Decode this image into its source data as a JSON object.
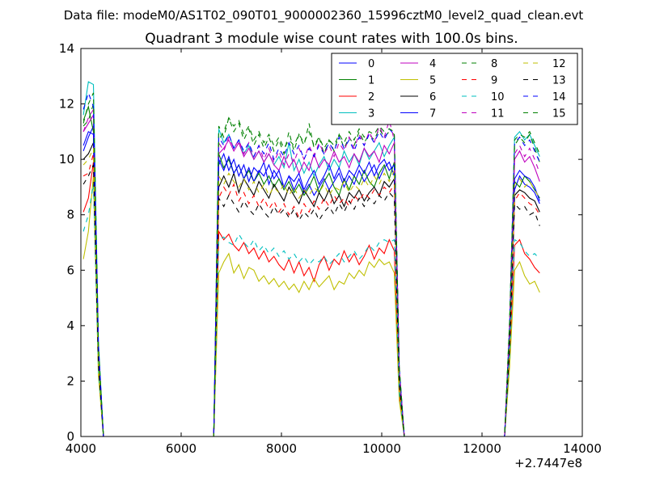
{
  "chart_data": {
    "type": "line",
    "suptitle": "Data file: modeM0/AS1T02_090T01_9000002360_15996cztM0_level2_quad_clean.evt",
    "title": "Quadrant 3 module wise count rates with 100.0s bins.",
    "xlabel": "",
    "ylabel": "",
    "x_offset_label": "+2.7447e8",
    "xlim": [
      4000,
      14000
    ],
    "ylim": [
      0,
      14
    ],
    "xticks": [
      4000,
      6000,
      8000,
      10000,
      12000,
      14000
    ],
    "yticks": [
      0,
      2,
      4,
      6,
      8,
      10,
      12,
      14
    ],
    "grid": false,
    "legend_position": "top-right",
    "legend_columns": 4,
    "x": [
      4050,
      4150,
      4250,
      4350,
      4450,
      4550,
      6650,
      6750,
      6850,
      6950,
      7050,
      7150,
      7250,
      7350,
      7450,
      7550,
      7650,
      7750,
      7850,
      7950,
      8050,
      8150,
      8250,
      8350,
      8450,
      8550,
      8650,
      8750,
      8850,
      8950,
      9050,
      9150,
      9250,
      9350,
      9450,
      9550,
      9650,
      9750,
      9850,
      9950,
      10050,
      10150,
      10250,
      10350,
      10450,
      12450,
      12550,
      12650,
      12750,
      12850,
      12950,
      13050,
      13150
    ],
    "series": [
      {
        "name": "0",
        "color": "#0000ff",
        "dash": "solid",
        "values": [
          10.3,
          10.8,
          11.2,
          3.0,
          0,
          0,
          0,
          9.8,
          10.2,
          9.6,
          10.0,
          9.4,
          9.8,
          9.2,
          9.7,
          9.5,
          9.9,
          9.1,
          9.6,
          9.3,
          9.0,
          9.4,
          8.9,
          9.3,
          8.8,
          9.1,
          8.7,
          9.0,
          9.3,
          8.9,
          9.2,
          9.5,
          9.0,
          9.4,
          9.1,
          9.6,
          9.2,
          9.5,
          9.8,
          9.3,
          9.7,
          9.9,
          9.4,
          2.0,
          0,
          0,
          3.5,
          8.9,
          9.4,
          9.1,
          9.0,
          8.8,
          8.4
        ]
      },
      {
        "name": "1",
        "color": "#008000",
        "dash": "solid",
        "values": [
          11.4,
          11.9,
          11.0,
          3.1,
          0,
          0,
          0,
          10.2,
          9.7,
          10.0,
          9.5,
          9.8,
          9.3,
          9.6,
          9.2,
          9.5,
          9.1,
          9.4,
          9.0,
          9.3,
          8.9,
          9.2,
          8.8,
          9.1,
          8.7,
          9.0,
          9.4,
          8.8,
          9.2,
          9.5,
          9.0,
          8.7,
          9.3,
          8.9,
          9.4,
          9.1,
          9.6,
          9.2,
          9.0,
          9.5,
          9.8,
          9.3,
          9.9,
          2.0,
          0,
          0,
          3.5,
          9.2,
          9.0,
          9.4,
          9.2,
          8.9,
          8.6
        ]
      },
      {
        "name": "2",
        "color": "#ff0000",
        "dash": "solid",
        "values": [
          8.1,
          8.6,
          9.9,
          2.5,
          0,
          0,
          0,
          7.4,
          7.1,
          7.3,
          6.9,
          6.7,
          7.0,
          6.6,
          6.8,
          6.4,
          6.7,
          6.3,
          6.5,
          6.2,
          6.0,
          6.4,
          5.9,
          6.3,
          5.8,
          6.1,
          5.6,
          6.2,
          6.5,
          6.0,
          6.4,
          6.2,
          6.7,
          6.3,
          6.6,
          6.2,
          6.5,
          6.9,
          6.4,
          6.8,
          6.6,
          7.1,
          6.7,
          1.5,
          0,
          0,
          2.8,
          6.9,
          7.1,
          6.6,
          6.4,
          6.1,
          5.9
        ]
      },
      {
        "name": "3",
        "color": "#00bfbf",
        "dash": "solid",
        "values": [
          11.6,
          12.8,
          12.7,
          3.4,
          0,
          0,
          0,
          11.1,
          10.6,
          10.9,
          10.4,
          10.7,
          10.2,
          10.5,
          10.0,
          10.3,
          9.9,
          10.2,
          9.8,
          10.1,
          9.7,
          10.6,
          9.6,
          10.0,
          9.5,
          9.9,
          9.4,
          9.8,
          10.1,
          9.6,
          10.0,
          9.7,
          10.3,
          9.9,
          10.2,
          9.8,
          10.4,
          10.0,
          10.3,
          10.6,
          10.1,
          10.5,
          10.8,
          2.4,
          0,
          0,
          4.0,
          10.8,
          11.0,
          10.7,
          10.9,
          10.5,
          10.1
        ]
      },
      {
        "name": "4",
        "color": "#bf00bf",
        "dash": "solid",
        "values": [
          11.0,
          11.3,
          11.6,
          3.1,
          0,
          0,
          0,
          10.2,
          10.4,
          10.7,
          10.3,
          10.6,
          10.1,
          10.4,
          10.0,
          10.3,
          9.9,
          10.2,
          9.8,
          9.6,
          10.1,
          9.7,
          10.0,
          9.5,
          9.9,
          9.6,
          10.2,
          9.7,
          10.0,
          9.8,
          10.3,
          9.9,
          10.1,
          9.7,
          10.2,
          9.9,
          10.4,
          10.1,
          10.3,
          9.9,
          10.5,
          10.2,
          10.6,
          2.3,
          0,
          0,
          3.8,
          10.0,
          10.3,
          9.9,
          10.1,
          9.7,
          9.2
        ]
      },
      {
        "name": "5",
        "color": "#bfbf00",
        "dash": "solid",
        "values": [
          6.4,
          7.4,
          9.4,
          2.2,
          0,
          0,
          0,
          5.9,
          6.3,
          6.6,
          5.9,
          6.2,
          5.7,
          6.1,
          6.0,
          5.6,
          5.8,
          5.5,
          5.7,
          5.4,
          5.6,
          5.3,
          5.5,
          5.2,
          5.6,
          5.3,
          5.7,
          5.4,
          5.6,
          5.8,
          5.3,
          5.6,
          5.5,
          5.9,
          5.7,
          6.0,
          5.8,
          6.3,
          6.1,
          6.4,
          6.2,
          6.3,
          5.9,
          1.3,
          0,
          0,
          2.5,
          6.0,
          6.3,
          5.8,
          5.5,
          5.6,
          5.2
        ]
      },
      {
        "name": "6",
        "color": "#000000",
        "dash": "solid",
        "values": [
          10.0,
          10.2,
          10.6,
          2.8,
          0,
          0,
          0,
          9.0,
          9.4,
          9.0,
          9.5,
          8.8,
          9.3,
          9.0,
          8.7,
          9.2,
          8.9,
          8.6,
          9.1,
          8.8,
          8.5,
          9.0,
          8.7,
          8.4,
          8.9,
          8.6,
          8.3,
          8.8,
          8.5,
          8.9,
          8.4,
          8.7,
          8.3,
          8.8,
          8.6,
          8.9,
          8.5,
          8.8,
          9.0,
          8.7,
          9.2,
          9.0,
          9.3,
          2.0,
          0,
          0,
          3.3,
          8.7,
          8.9,
          8.8,
          8.6,
          8.5,
          8.1
        ]
      },
      {
        "name": "7",
        "color": "#0000ff",
        "dash": "solid",
        "values": [
          10.5,
          11.0,
          10.9,
          3.0,
          0,
          0,
          0,
          10.0,
          9.6,
          10.1,
          9.5,
          9.8,
          9.3,
          9.7,
          9.2,
          9.6,
          9.4,
          9.8,
          9.3,
          9.6,
          9.0,
          9.4,
          9.2,
          9.5,
          8.9,
          9.3,
          9.6,
          9.1,
          9.4,
          9.8,
          9.3,
          9.7,
          9.2,
          9.6,
          9.4,
          9.8,
          9.5,
          9.9,
          9.4,
          9.8,
          10.0,
          9.6,
          9.8,
          2.1,
          0,
          0,
          3.6,
          9.3,
          9.6,
          9.4,
          9.3,
          9.0,
          8.5
        ]
      },
      {
        "name": "8",
        "color": "#008000",
        "dash": "dashed",
        "values": [
          11.2,
          11.4,
          12.0,
          3.2,
          0,
          0,
          0,
          11.2,
          10.8,
          11.5,
          11.0,
          11.3,
          10.7,
          11.1,
          10.5,
          10.9,
          10.4,
          10.8,
          10.3,
          10.7,
          10.2,
          11.0,
          10.3,
          10.9,
          10.5,
          11.3,
          10.4,
          10.8,
          10.2,
          10.7,
          10.3,
          10.9,
          10.4,
          10.8,
          10.5,
          11.0,
          10.6,
          10.9,
          10.7,
          11.1,
          10.8,
          11.0,
          10.9,
          2.5,
          0,
          0,
          4.2,
          10.5,
          10.8,
          10.6,
          10.9,
          10.4,
          9.9
        ]
      },
      {
        "name": "9",
        "color": "#ff0000",
        "dash": "dashed",
        "values": [
          9.4,
          9.5,
          10.2,
          2.7,
          0,
          0,
          0,
          8.6,
          9.0,
          8.7,
          9.1,
          8.5,
          8.8,
          8.4,
          8.7,
          8.3,
          8.6,
          8.2,
          8.5,
          8.1,
          8.4,
          8.0,
          8.3,
          7.9,
          8.4,
          8.1,
          8.5,
          8.2,
          8.6,
          8.3,
          8.7,
          8.4,
          8.6,
          8.3,
          8.7,
          8.5,
          8.8,
          8.6,
          8.9,
          8.7,
          9.0,
          8.8,
          9.1,
          1.9,
          0,
          0,
          3.3,
          8.5,
          8.8,
          8.6,
          8.4,
          8.3,
          8.0
        ]
      },
      {
        "name": "10",
        "color": "#00bfbf",
        "dash": "dashed",
        "values": [
          7.4,
          8.0,
          9.1,
          2.4,
          0,
          0,
          0,
          7.1,
          7.2,
          7.0,
          6.9,
          7.3,
          7.0,
          6.8,
          7.1,
          6.7,
          6.9,
          6.6,
          6.8,
          6.5,
          6.7,
          6.4,
          6.6,
          6.3,
          6.5,
          6.2,
          6.4,
          6.3,
          6.5,
          6.2,
          6.4,
          6.6,
          6.3,
          6.5,
          6.7,
          6.4,
          6.6,
          6.9,
          6.7,
          7.0,
          7.1,
          7.0,
          7.1,
          1.6,
          0,
          0,
          2.9,
          7.1,
          7.0,
          6.7,
          6.5,
          6.6,
          6.4
        ]
      },
      {
        "name": "11",
        "color": "#bf00bf",
        "dash": "dashed",
        "values": [
          11.0,
          11.5,
          11.8,
          3.2,
          0,
          0,
          0,
          10.6,
          10.3,
          10.8,
          10.4,
          10.7,
          10.2,
          10.6,
          10.1,
          10.5,
          10.0,
          10.4,
          9.9,
          10.3,
          9.8,
          10.2,
          9.9,
          10.4,
          10.0,
          10.5,
          10.1,
          10.6,
          10.2,
          10.5,
          10.1,
          10.6,
          10.3,
          10.8,
          10.4,
          10.9,
          10.5,
          11.0,
          10.6,
          11.2,
          10.8,
          11.4,
          10.7,
          2.4,
          0,
          0,
          3.9,
          10.2,
          10.5,
          10.1,
          10.4,
          10.0,
          9.5
        ]
      },
      {
        "name": "12",
        "color": "#bfbf00",
        "dash": "dashed",
        "values": [
          9.8,
          10.0,
          10.4,
          2.8,
          0,
          0,
          0,
          9.4,
          9.1,
          9.5,
          9.2,
          9.0,
          9.3,
          8.9,
          9.2,
          8.8,
          9.1,
          8.7,
          9.0,
          8.8,
          9.1,
          8.7,
          9.0,
          8.6,
          8.9,
          8.7,
          9.0,
          8.8,
          9.1,
          8.7,
          9.0,
          8.9,
          9.2,
          8.8,
          9.1,
          8.9,
          9.3,
          9.0,
          9.4,
          9.1,
          9.5,
          9.2,
          9.6,
          2.0,
          0,
          0,
          3.5,
          9.1,
          9.3,
          9.0,
          9.2,
          8.9,
          8.6
        ]
      },
      {
        "name": "13",
        "color": "#000000",
        "dash": "dashed",
        "values": [
          9.1,
          9.4,
          9.8,
          2.6,
          0,
          0,
          0,
          8.6,
          8.3,
          8.7,
          8.4,
          8.1,
          8.5,
          8.2,
          8.0,
          8.4,
          8.1,
          7.9,
          8.3,
          8.0,
          8.2,
          7.9,
          8.2,
          7.8,
          8.1,
          7.9,
          8.2,
          7.8,
          8.1,
          8.3,
          8.0,
          8.4,
          8.1,
          8.5,
          8.2,
          8.6,
          8.3,
          8.6,
          8.4,
          8.7,
          8.5,
          8.8,
          8.6,
          1.9,
          0,
          0,
          3.2,
          8.4,
          8.2,
          8.3,
          8.0,
          8.1,
          7.6
        ]
      },
      {
        "name": "14",
        "color": "#0000ff",
        "dash": "dashed",
        "values": [
          11.8,
          12.4,
          11.9,
          3.3,
          0,
          0,
          0,
          10.8,
          10.5,
          10.9,
          10.4,
          10.7,
          10.3,
          10.6,
          10.1,
          10.5,
          10.2,
          10.6,
          10.0,
          10.4,
          10.1,
          10.6,
          10.2,
          10.5,
          10.0,
          10.4,
          10.1,
          10.5,
          10.2,
          10.6,
          10.3,
          10.8,
          10.4,
          10.7,
          10.3,
          10.8,
          10.5,
          10.9,
          10.6,
          11.0,
          10.7,
          11.1,
          10.9,
          2.5,
          0,
          0,
          4.0,
          10.6,
          10.8,
          10.5,
          10.7,
          10.3,
          9.9
        ]
      },
      {
        "name": "15",
        "color": "#008000",
        "dash": "dashed",
        "values": [
          11.3,
          12.0,
          12.4,
          3.3,
          0,
          0,
          0,
          10.7,
          11.0,
          11.5,
          11.2,
          11.4,
          10.9,
          11.2,
          10.7,
          11.0,
          10.6,
          10.9,
          10.5,
          10.8,
          10.4,
          10.7,
          10.5,
          10.9,
          10.6,
          11.0,
          10.5,
          10.8,
          10.4,
          10.7,
          10.5,
          10.9,
          10.6,
          11.0,
          10.7,
          11.1,
          10.8,
          11.0,
          10.9,
          11.2,
          11.0,
          11.1,
          11.0,
          2.5,
          0,
          0,
          4.1,
          10.7,
          10.9,
          10.8,
          11.0,
          10.6,
          10.2
        ]
      }
    ]
  }
}
